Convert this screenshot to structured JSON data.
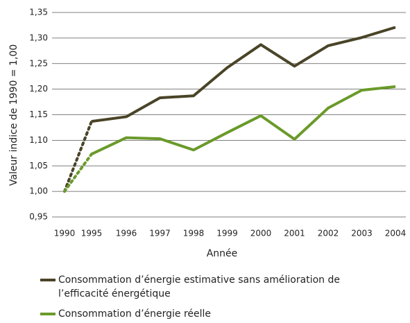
{
  "chart_data": {
    "type": "line",
    "categories": [
      "1990",
      "1995",
      "1996",
      "1997",
      "1998",
      "1999",
      "2000",
      "2001",
      "2002",
      "2003",
      "2004"
    ],
    "series": [
      {
        "name": "Consommation d’énergie estimative sans amélioration de l’efficacité énergétique",
        "color": "#4a4428",
        "values": [
          1.0,
          1.137,
          1.146,
          1.183,
          1.187,
          1.242,
          1.287,
          1.245,
          1.285,
          1.301,
          1.321
        ]
      },
      {
        "name": "Consommation d’énergie réelle",
        "color": "#6a9a2a",
        "values": [
          1.0,
          1.073,
          1.105,
          1.103,
          1.081,
          1.115,
          1.148,
          1.102,
          1.163,
          1.198,
          1.205
        ]
      }
    ],
    "ylim": [
      0.95,
      1.35
    ],
    "yticks": [
      {
        "value": 0.95,
        "label": "0,95"
      },
      {
        "value": 1.0,
        "label": "1,00"
      },
      {
        "value": 1.05,
        "label": "1,05"
      },
      {
        "value": 1.1,
        "label": "1,10"
      },
      {
        "value": 1.15,
        "label": "1,15"
      },
      {
        "value": 1.2,
        "label": "1,20"
      },
      {
        "value": 1.25,
        "label": "1,25"
      },
      {
        "value": 1.3,
        "label": "1,30"
      },
      {
        "value": 1.35,
        "label": "1,35"
      }
    ],
    "xlabel": "Année",
    "ylabel": "Valeur indice de 1990 = 1,00",
    "grid": true
  }
}
